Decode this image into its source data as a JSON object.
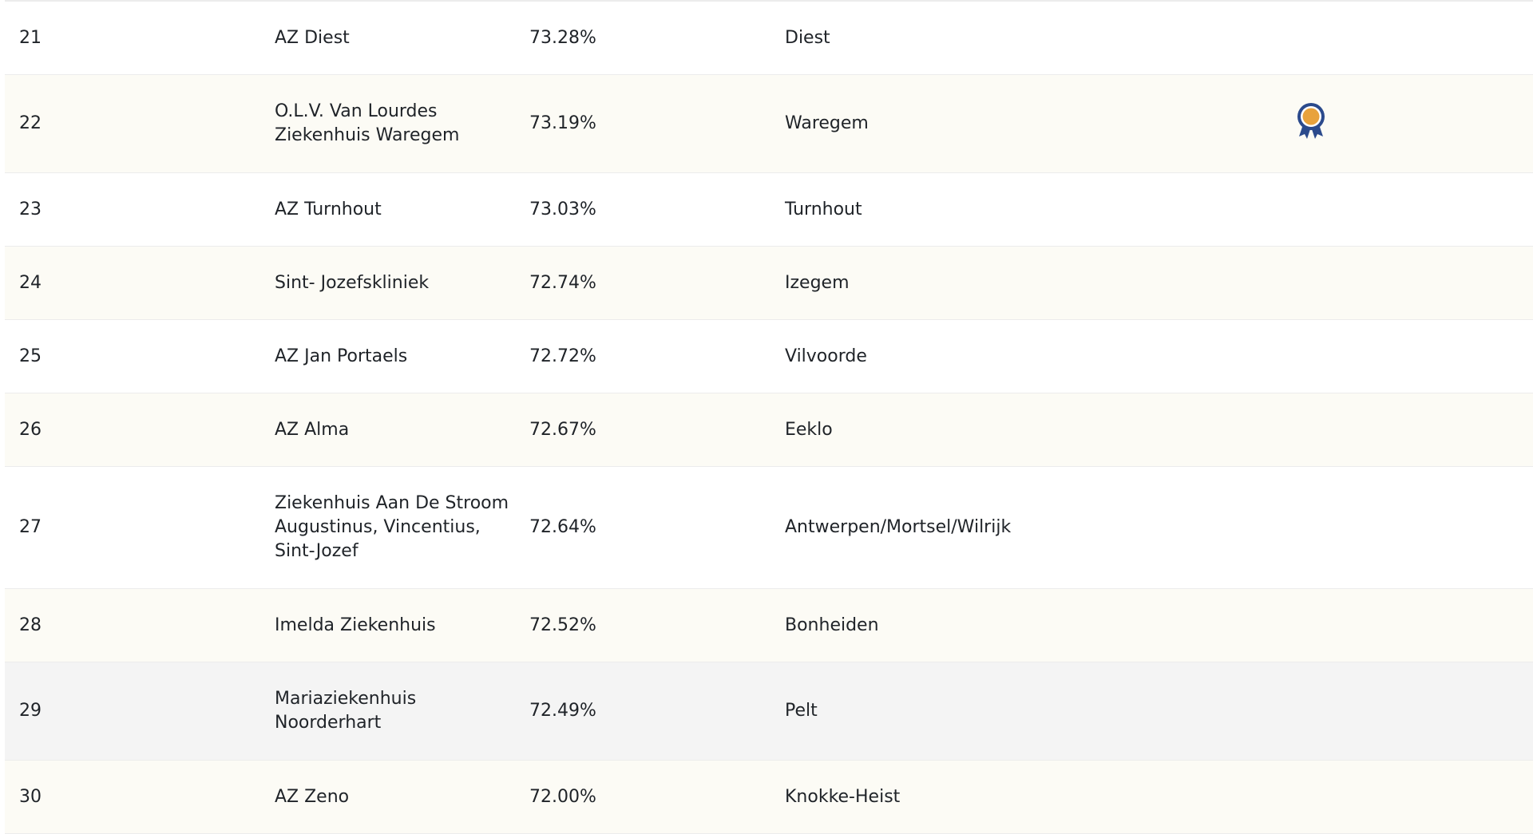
{
  "colors": {
    "row_alt": "#fcfbf5",
    "row_hover": "#f4f4f4",
    "award_blue": "#2b4a8c",
    "award_gold": "#e8a23c"
  },
  "rows": [
    {
      "rank": "21",
      "name": "AZ Diest",
      "score": "73.28%",
      "city": "Diest",
      "award": false
    },
    {
      "rank": "22",
      "name": "O.L.V. Van Lourdes Ziekenhuis Waregem",
      "score": "73.19%",
      "city": "Waregem",
      "award": true,
      "award_icon": "award-ribbon-icon"
    },
    {
      "rank": "23",
      "name": "AZ Turnhout",
      "score": "73.03%",
      "city": "Turnhout",
      "award": false
    },
    {
      "rank": "24",
      "name": "Sint- Jozefskliniek",
      "score": "72.74%",
      "city": "Izegem",
      "award": false
    },
    {
      "rank": "25",
      "name": "AZ Jan Portaels",
      "score": "72.72%",
      "city": "Vilvoorde",
      "award": false
    },
    {
      "rank": "26",
      "name": "AZ Alma",
      "score": "72.67%",
      "city": "Eeklo",
      "award": false
    },
    {
      "rank": "27",
      "name": "Ziekenhuis Aan De Stroom Augustinus, Vincentius, Sint-Jozef",
      "score": "72.64%",
      "city": "Antwerpen/Mortsel/Wilrijk",
      "award": false
    },
    {
      "rank": "28",
      "name": "Imelda Ziekenhuis",
      "score": "72.52%",
      "city": "Bonheiden",
      "award": false
    },
    {
      "rank": "29",
      "name": "Mariaziekenhuis Noorderhart",
      "score": "72.49%",
      "city": "Pelt",
      "award": false
    },
    {
      "rank": "30",
      "name": "AZ Zeno",
      "score": "72.00%",
      "city": "Knokke-Heist",
      "award": false
    }
  ]
}
